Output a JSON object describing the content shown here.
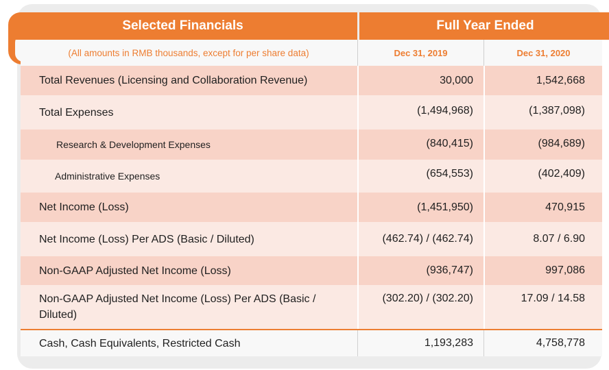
{
  "header": {
    "title_left": "Selected Financials",
    "title_right": "Full Year Ended",
    "note": "(All amounts in RMB thousands, except for per share data)",
    "col1": "Dec 31, 2019",
    "col2": "Dec 31, 2020"
  },
  "rows": [
    {
      "label": "Total Revenues (Licensing and Collaboration Revenue)",
      "v2019": "30,000",
      "v2020": "1,542,668"
    },
    {
      "label": "Total Expenses",
      "v2019": "(1,494,968)",
      "v2020": "(1,387,098)"
    },
    {
      "label": "Research & Development Expenses",
      "v2019": "(840,415)",
      "v2020": "(984,689)"
    },
    {
      "label": "Administrative Expenses",
      "v2019": "(654,553)",
      "v2020": "(402,409)"
    },
    {
      "label": "Net Income (Loss)",
      "v2019": "(1,451,950)",
      "v2020": "470,915"
    },
    {
      "label": "Net Income (Loss) Per ADS (Basic / Diluted)",
      "v2019": "(462.74) / (462.74)",
      "v2020": "8.07 / 6.90"
    },
    {
      "label": "Non-GAAP Adjusted Net Income (Loss)",
      "v2019": "(936,747)",
      "v2020": "997,086"
    },
    {
      "label": "Non-GAAP Adjusted Net Income (Loss) Per ADS (Basic / Diluted)",
      "v2019": "(302.20) / (302.20)",
      "v2020": "17.09 / 14.58"
    },
    {
      "label": "Cash, Cash Equivalents, Restricted Cash",
      "v2019": "1,193,283",
      "v2020": "4,758,778"
    }
  ],
  "colors": {
    "accent": "#ed7d31",
    "row_dark": "#f8d3c7",
    "row_light": "#fbe9e3"
  }
}
